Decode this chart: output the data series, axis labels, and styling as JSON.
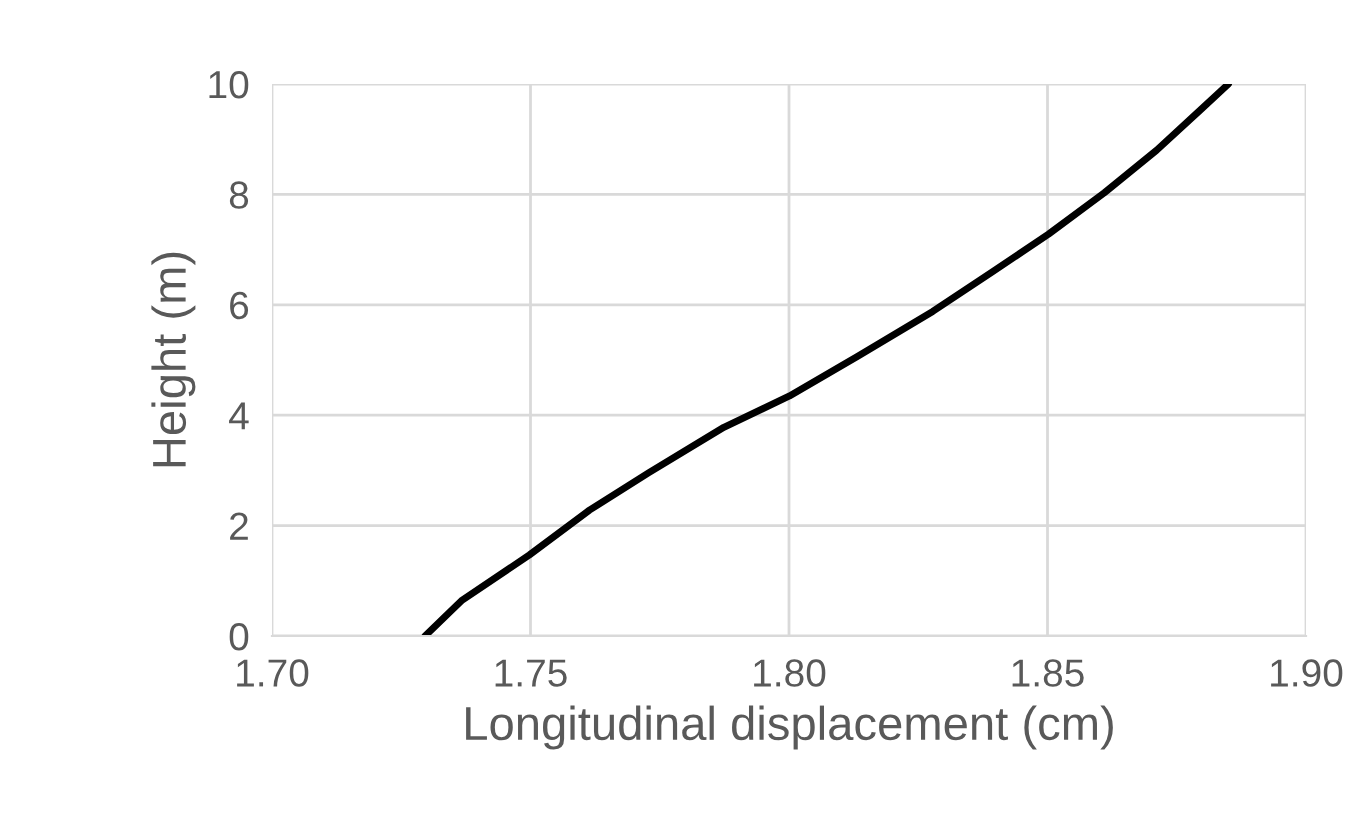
{
  "chart_data": {
    "type": "line",
    "xlabel": "Longitudinal displacement (cm)",
    "ylabel": "Height (m)",
    "series": [
      {
        "color": "#000000",
        "x": [
          1.7296,
          1.7368,
          1.7498,
          1.7614,
          1.7729,
          1.7874,
          1.8001,
          1.8133,
          1.8278,
          1.8394,
          1.8502,
          1.861,
          1.8711,
          1.8798,
          1.885
        ],
        "values": [
          0,
          0.65,
          1.47,
          2.28,
          2.96,
          3.78,
          4.35,
          5.07,
          5.88,
          6.6,
          7.28,
          8.03,
          8.8,
          9.55,
          10.0
        ]
      }
    ],
    "xlim": [
      1.7,
      1.9
    ],
    "xticks": [
      {
        "value": 1.7,
        "label": "1.70"
      },
      {
        "value": 1.75,
        "label": "1.75"
      },
      {
        "value": 1.8,
        "label": "1.80"
      },
      {
        "value": 1.85,
        "label": "1.85"
      },
      {
        "value": 1.9,
        "label": "1.90"
      }
    ],
    "ylim": [
      0,
      10
    ],
    "yticks": [
      0,
      2,
      4,
      6,
      8,
      10
    ],
    "grid": true,
    "legend": false
  }
}
